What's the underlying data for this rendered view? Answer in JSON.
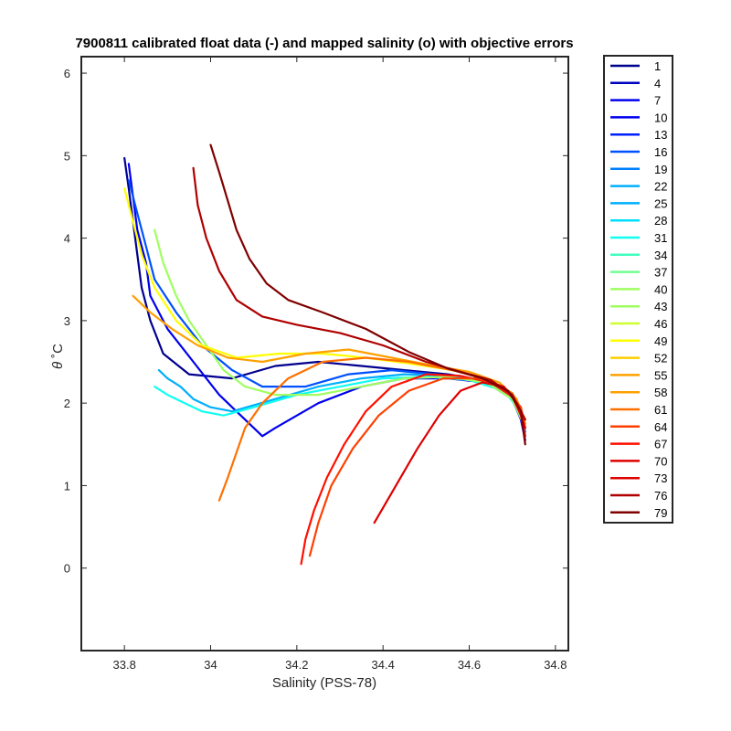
{
  "chart_data": {
    "type": "line",
    "title": "7900811 calibrated float data (-) and mapped salinity (o) with objective errors",
    "xlabel": "Salinity (PSS-78)",
    "ylabel_symbol": "θ",
    "ylabel_unit": "˚C",
    "xlim": [
      33.7,
      34.83
    ],
    "ylim": [
      -1,
      6.2
    ],
    "xticks": [
      33.8,
      34,
      34.2,
      34.4,
      34.6,
      34.8
    ],
    "xtick_labels": [
      "33.8",
      "34",
      "34.2",
      "34.4",
      "34.6",
      "34.8"
    ],
    "yticks": [
      0,
      1,
      2,
      3,
      4,
      5,
      6
    ],
    "ytick_labels": [
      "0",
      "1",
      "2",
      "3",
      "4",
      "5",
      "6"
    ],
    "grid": false,
    "legend_position": "outside-right",
    "legend": [
      "1",
      "4",
      "7",
      "10",
      "13",
      "16",
      "19",
      "22",
      "25",
      "28",
      "31",
      "34",
      "37",
      "40",
      "43",
      "46",
      "49",
      "52",
      "55",
      "58",
      "61",
      "64",
      "67",
      "70",
      "73",
      "76",
      "79"
    ],
    "legend_colors": [
      "#00008f",
      "#0000bf",
      "#0000ef",
      "#0020ff",
      "#0050ff",
      "#0080ff",
      "#00afff",
      "#00dfff",
      "#10ffef",
      "#40ffbf",
      "#70ff8f",
      "#9fff60",
      "#cfff30",
      "#ffff00",
      "#ffcf00",
      "#ffa000",
      "#ff7000",
      "#ff4000",
      "#ff1000",
      "#df0000",
      "#af0000",
      "#800000"
    ],
    "series": [
      {
        "color": "#00008f",
        "points": [
          [
            33.8,
            4.97
          ],
          [
            33.81,
            4.6
          ],
          [
            33.82,
            4.2
          ],
          [
            33.83,
            3.8
          ],
          [
            33.84,
            3.4
          ],
          [
            33.86,
            3.0
          ],
          [
            33.89,
            2.6
          ],
          [
            33.95,
            2.35
          ],
          [
            34.05,
            2.3
          ],
          [
            34.15,
            2.45
          ],
          [
            34.25,
            2.5
          ],
          [
            34.35,
            2.45
          ],
          [
            34.45,
            2.4
          ],
          [
            34.55,
            2.35
          ],
          [
            34.63,
            2.28
          ],
          [
            34.68,
            2.2
          ],
          [
            34.71,
            2.0
          ],
          [
            34.72,
            1.8
          ],
          [
            34.73,
            1.6
          ]
        ]
      },
      {
        "color": "#0000ef",
        "points": [
          [
            33.81,
            4.9
          ],
          [
            33.82,
            4.5
          ],
          [
            33.83,
            4.1
          ],
          [
            33.85,
            3.7
          ],
          [
            33.86,
            3.3
          ],
          [
            33.9,
            2.9
          ],
          [
            33.96,
            2.5
          ],
          [
            34.02,
            2.1
          ],
          [
            34.08,
            1.8
          ],
          [
            34.12,
            1.6
          ],
          [
            34.15,
            1.7
          ],
          [
            34.25,
            2.0
          ],
          [
            34.35,
            2.2
          ],
          [
            34.45,
            2.3
          ],
          [
            34.55,
            2.3
          ],
          [
            34.64,
            2.25
          ],
          [
            34.7,
            2.05
          ],
          [
            34.72,
            1.8
          ],
          [
            34.73,
            1.55
          ]
        ]
      },
      {
        "color": "#0050ff",
        "points": [
          [
            33.81,
            4.7
          ],
          [
            33.83,
            4.3
          ],
          [
            33.85,
            3.9
          ],
          [
            33.87,
            3.5
          ],
          [
            33.92,
            3.1
          ],
          [
            33.98,
            2.7
          ],
          [
            34.05,
            2.4
          ],
          [
            34.12,
            2.2
          ],
          [
            34.22,
            2.2
          ],
          [
            34.32,
            2.35
          ],
          [
            34.42,
            2.4
          ],
          [
            34.52,
            2.35
          ],
          [
            34.62,
            2.28
          ],
          [
            34.69,
            2.15
          ],
          [
            34.72,
            1.9
          ],
          [
            34.73,
            1.65
          ]
        ]
      },
      {
        "color": "#00afff",
        "points": [
          [
            33.88,
            2.4
          ],
          [
            33.9,
            2.3
          ],
          [
            33.93,
            2.2
          ],
          [
            33.96,
            2.05
          ],
          [
            34.0,
            1.95
          ],
          [
            34.05,
            1.9
          ],
          [
            34.15,
            2.05
          ],
          [
            34.25,
            2.2
          ],
          [
            34.35,
            2.3
          ],
          [
            34.45,
            2.35
          ],
          [
            34.55,
            2.33
          ],
          [
            34.63,
            2.28
          ],
          [
            34.69,
            2.12
          ],
          [
            34.72,
            1.85
          ],
          [
            34.73,
            1.6
          ]
        ]
      },
      {
        "color": "#10ffef",
        "points": [
          [
            33.87,
            2.2
          ],
          [
            33.9,
            2.1
          ],
          [
            33.94,
            2.0
          ],
          [
            33.98,
            1.9
          ],
          [
            34.03,
            1.85
          ],
          [
            34.1,
            1.95
          ],
          [
            34.2,
            2.1
          ],
          [
            34.3,
            2.2
          ],
          [
            34.4,
            2.3
          ],
          [
            34.5,
            2.32
          ],
          [
            34.6,
            2.28
          ],
          [
            34.68,
            2.15
          ],
          [
            34.72,
            1.9
          ],
          [
            34.73,
            1.6
          ]
        ]
      },
      {
        "color": "#9fff60",
        "points": [
          [
            33.87,
            4.1
          ],
          [
            33.89,
            3.7
          ],
          [
            33.92,
            3.3
          ],
          [
            33.95,
            3.0
          ],
          [
            33.99,
            2.7
          ],
          [
            34.03,
            2.4
          ],
          [
            34.08,
            2.2
          ],
          [
            34.15,
            2.1
          ],
          [
            34.25,
            2.1
          ],
          [
            34.35,
            2.2
          ],
          [
            34.45,
            2.3
          ],
          [
            34.55,
            2.32
          ],
          [
            34.64,
            2.25
          ],
          [
            34.7,
            2.05
          ],
          [
            34.73,
            1.7
          ]
        ]
      },
      {
        "color": "#ffff00",
        "points": [
          [
            33.8,
            4.6
          ],
          [
            33.82,
            4.2
          ],
          [
            33.84,
            3.8
          ],
          [
            33.87,
            3.4
          ],
          [
            33.92,
            3.0
          ],
          [
            33.98,
            2.7
          ],
          [
            34.06,
            2.55
          ],
          [
            34.16,
            2.6
          ],
          [
            34.26,
            2.6
          ],
          [
            34.36,
            2.55
          ],
          [
            34.46,
            2.48
          ],
          [
            34.56,
            2.4
          ],
          [
            34.64,
            2.3
          ],
          [
            34.7,
            2.1
          ],
          [
            34.73,
            1.8
          ]
        ]
      },
      {
        "color": "#ffa000",
        "points": [
          [
            33.82,
            3.3
          ],
          [
            33.86,
            3.1
          ],
          [
            33.91,
            2.9
          ],
          [
            33.97,
            2.7
          ],
          [
            34.04,
            2.55
          ],
          [
            34.12,
            2.5
          ],
          [
            34.22,
            2.6
          ],
          [
            34.32,
            2.65
          ],
          [
            34.42,
            2.55
          ],
          [
            34.52,
            2.45
          ],
          [
            34.6,
            2.38
          ],
          [
            34.67,
            2.25
          ],
          [
            34.71,
            2.05
          ],
          [
            34.73,
            1.75
          ]
        ]
      },
      {
        "color": "#ff7000",
        "points": [
          [
            34.02,
            0.82
          ],
          [
            34.04,
            1.1
          ],
          [
            34.06,
            1.4
          ],
          [
            34.08,
            1.7
          ],
          [
            34.12,
            2.0
          ],
          [
            34.18,
            2.3
          ],
          [
            34.26,
            2.5
          ],
          [
            34.36,
            2.55
          ],
          [
            34.46,
            2.5
          ],
          [
            34.56,
            2.4
          ],
          [
            34.64,
            2.3
          ],
          [
            34.7,
            2.12
          ],
          [
            34.73,
            1.8
          ]
        ]
      },
      {
        "color": "#ff1000",
        "points": [
          [
            34.21,
            0.05
          ],
          [
            34.22,
            0.35
          ],
          [
            34.24,
            0.7
          ],
          [
            34.27,
            1.1
          ],
          [
            34.31,
            1.5
          ],
          [
            34.36,
            1.9
          ],
          [
            34.42,
            2.2
          ],
          [
            34.5,
            2.35
          ],
          [
            34.58,
            2.33
          ],
          [
            34.65,
            2.25
          ],
          [
            34.7,
            2.08
          ],
          [
            34.72,
            1.85
          ],
          [
            34.73,
            1.6
          ]
        ]
      },
      {
        "color": "#ff4000",
        "points": [
          [
            34.23,
            0.15
          ],
          [
            34.25,
            0.55
          ],
          [
            34.28,
            1.0
          ],
          [
            34.33,
            1.45
          ],
          [
            34.39,
            1.85
          ],
          [
            34.46,
            2.15
          ],
          [
            34.54,
            2.3
          ],
          [
            34.62,
            2.3
          ],
          [
            34.68,
            2.2
          ],
          [
            34.72,
            1.95
          ],
          [
            34.73,
            1.7
          ]
        ]
      },
      {
        "color": "#df0000",
        "points": [
          [
            34.38,
            0.55
          ],
          [
            34.43,
            1.0
          ],
          [
            34.48,
            1.45
          ],
          [
            34.53,
            1.85
          ],
          [
            34.58,
            2.15
          ],
          [
            34.63,
            2.25
          ],
          [
            34.68,
            2.2
          ],
          [
            34.71,
            2.0
          ],
          [
            34.73,
            1.7
          ]
        ]
      },
      {
        "color": "#af0000",
        "points": [
          [
            33.96,
            4.85
          ],
          [
            33.97,
            4.4
          ],
          [
            33.99,
            4.0
          ],
          [
            34.02,
            3.6
          ],
          [
            34.06,
            3.25
          ],
          [
            34.12,
            3.05
          ],
          [
            34.2,
            2.95
          ],
          [
            34.3,
            2.85
          ],
          [
            34.4,
            2.7
          ],
          [
            34.5,
            2.5
          ],
          [
            34.58,
            2.38
          ],
          [
            34.65,
            2.28
          ],
          [
            34.7,
            2.1
          ],
          [
            34.73,
            1.8
          ]
        ]
      },
      {
        "color": "#800000",
        "points": [
          [
            34.0,
            5.13
          ],
          [
            34.02,
            4.8
          ],
          [
            34.04,
            4.45
          ],
          [
            34.06,
            4.1
          ],
          [
            34.09,
            3.75
          ],
          [
            34.13,
            3.45
          ],
          [
            34.18,
            3.25
          ],
          [
            34.26,
            3.1
          ],
          [
            34.36,
            2.9
          ],
          [
            34.46,
            2.62
          ],
          [
            34.55,
            2.42
          ],
          [
            34.63,
            2.3
          ],
          [
            34.69,
            2.15
          ],
          [
            34.72,
            1.9
          ],
          [
            34.73,
            1.5
          ]
        ]
      }
    ]
  }
}
